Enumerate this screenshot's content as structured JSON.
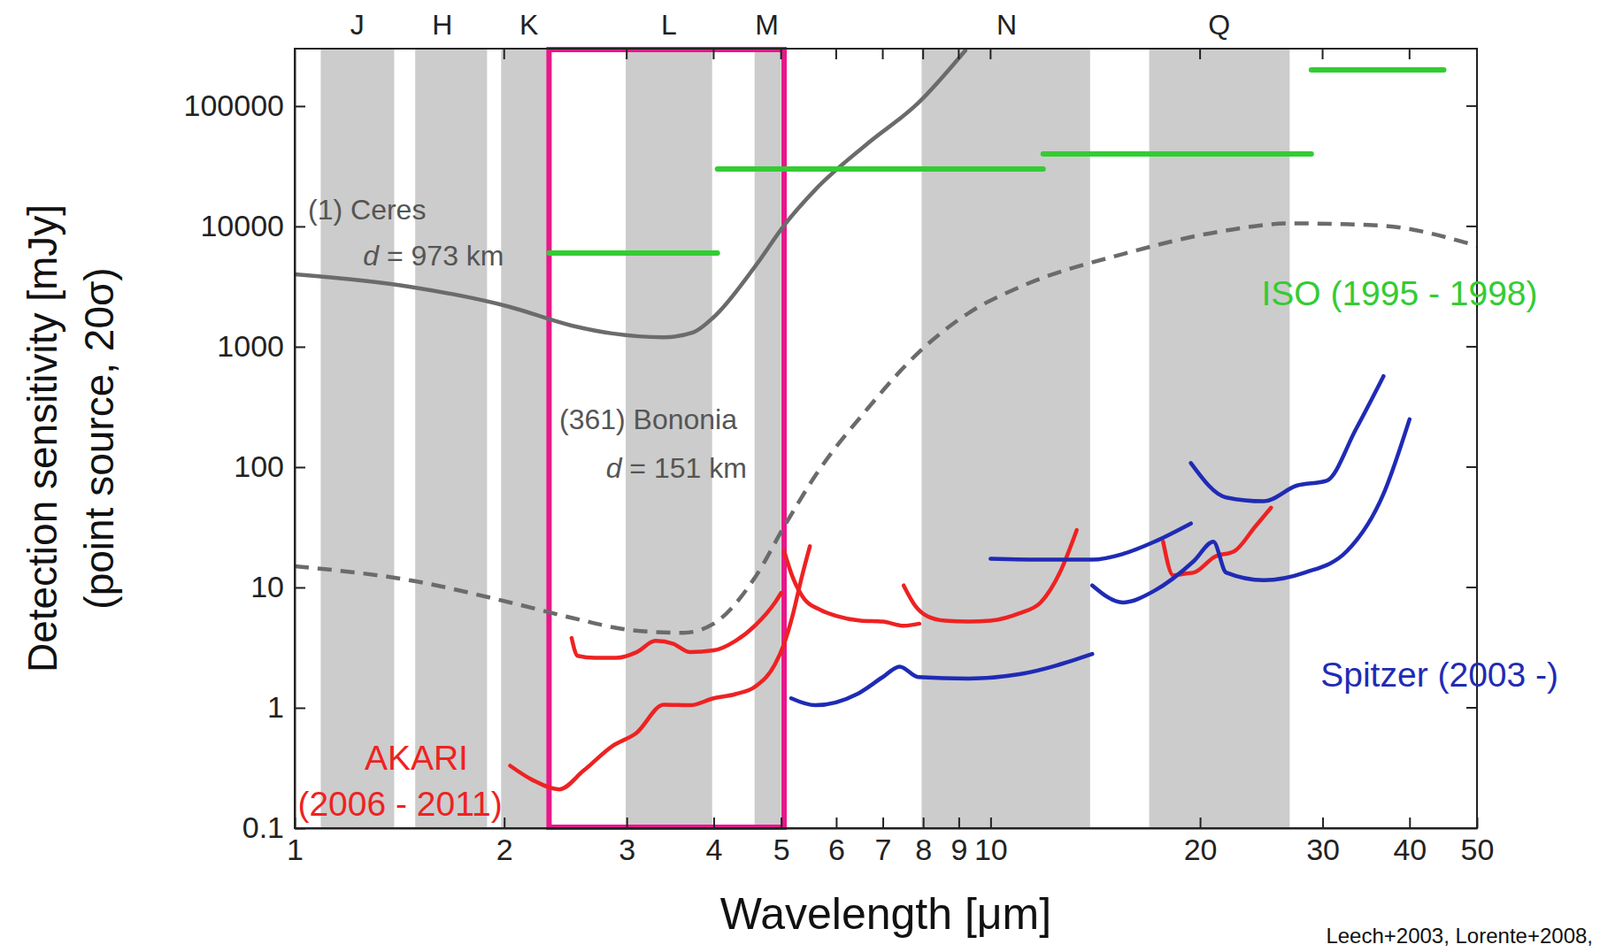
{
  "chart_data": {
    "type": "line",
    "log": true,
    "grid": false,
    "x_label": "Wavelength [μm]",
    "y_label": [
      "Detection sensitivity [mJy]",
      "(point source, 20σ)"
    ],
    "xlim": [
      1,
      50
    ],
    "ylim": [
      0.1,
      300000
    ],
    "xticks": [
      1,
      2,
      3,
      4,
      5,
      6,
      7,
      8,
      9,
      10,
      20,
      30,
      40,
      50
    ],
    "yticks": [
      0.1,
      1,
      10,
      100,
      1000,
      10000,
      100000
    ],
    "bands": [
      {
        "label": "J",
        "x": 1.23,
        "range": [
          1.09,
          1.39
        ]
      },
      {
        "label": "H",
        "x": 1.63,
        "range": [
          1.49,
          1.89
        ]
      },
      {
        "label": "K",
        "x": 2.17,
        "range": [
          1.98,
          2.32
        ]
      },
      {
        "label": "L",
        "x": 3.45,
        "range": [
          2.99,
          3.98
        ]
      },
      {
        "label": "M",
        "x": 4.77,
        "range": [
          4.58,
          5.0
        ]
      },
      {
        "label": "N",
        "x": 10.55,
        "range": [
          7.96,
          13.9
        ]
      },
      {
        "label": "Q",
        "x": 21.3,
        "range": [
          16.9,
          26.9
        ]
      }
    ],
    "highlight": {
      "x": [
        2.32,
        5.05
      ],
      "color": "#e8178a"
    },
    "series": [
      {
        "color": "#6b6b6b",
        "line_style": "solid",
        "x": [
          1,
          1.46,
          2.04,
          2.5,
          2.86,
          3.39,
          3.74,
          4.0,
          4.59,
          5.05,
          5.6,
          6.65,
          7.87,
          9.2
        ],
        "values": [
          4000,
          3160,
          2140,
          1500,
          1290,
          1200,
          1320,
          1760,
          4670,
          10200,
          20200,
          48600,
          106000,
          290000
        ]
      },
      {
        "color": "#6b6b6b",
        "line_style": "dashed",
        "x": [
          1,
          1.46,
          2.04,
          2.5,
          3.06,
          3.62,
          4.0,
          4.59,
          5.05,
          5.6,
          6.65,
          7.87,
          9.34,
          11.05,
          15.5,
          21.8,
          26.9,
          36,
          50
        ],
        "values": [
          15,
          11.5,
          7.5,
          5.6,
          4.4,
          4.2,
          5.0,
          12.2,
          32,
          85,
          304,
          890,
          1940,
          3160,
          5900,
          9250,
          10600,
          10200,
          6900
        ]
      },
      {
        "color": "#33cc33",
        "line_style": "solid",
        "x": [
          2.32,
          4.05
        ],
        "values": [
          6000,
          6000
        ]
      },
      {
        "color": "#33cc33",
        "line_style": "solid",
        "x": [
          4.05,
          11.9
        ],
        "values": [
          30000,
          30000
        ]
      },
      {
        "color": "#33cc33",
        "line_style": "solid",
        "x": [
          11.9,
          28.9
        ],
        "values": [
          40000,
          40000
        ]
      },
      {
        "color": "#33cc33",
        "line_style": "solid",
        "x": [
          28.9,
          44.8
        ],
        "values": [
          200000,
          200000
        ]
      },
      {
        "color": "#ee2222",
        "line_style": "solid",
        "x": [
          2.5,
          2.55,
          2.7,
          2.9,
          3.1,
          3.3,
          3.5,
          3.7,
          4.0,
          4.3,
          4.6,
          4.9,
          5.0
        ],
        "values": [
          3.8,
          2.7,
          2.6,
          2.6,
          2.9,
          3.6,
          3.4,
          2.9,
          3.0,
          3.6,
          4.9,
          7.5,
          9
        ]
      },
      {
        "color": "#ee2222",
        "line_style": "solid",
        "x": [
          2.04,
          2.2,
          2.4,
          2.6,
          2.86,
          3.1,
          3.39,
          3.7,
          4.0,
          4.3,
          4.59,
          4.9,
          5.05,
          5.2,
          5.35,
          5.5
        ],
        "values": [
          0.33,
          0.25,
          0.21,
          0.3,
          0.48,
          0.62,
          1.06,
          1.05,
          1.2,
          1.3,
          1.5,
          2.3,
          3.4,
          6,
          12,
          22
        ]
      },
      {
        "color": "#ee2222",
        "line_style": "solid",
        "x": [
          5.05,
          5.2,
          5.4,
          5.7,
          6.0,
          6.5,
          7.0,
          7.5,
          7.9
        ],
        "values": [
          20,
          12,
          8,
          6.5,
          5.8,
          5.3,
          5.2,
          4.8,
          5.0
        ]
      },
      {
        "color": "#ee2222",
        "line_style": "solid",
        "x": [
          7.5,
          7.8,
          8.1,
          8.6,
          9.3,
          10,
          11,
          11.8,
          12.6,
          13.3
        ],
        "values": [
          10.4,
          7,
          5.8,
          5.3,
          5.2,
          5.3,
          6.1,
          7.5,
          13.6,
          30
        ]
      },
      {
        "color": "#ee2222",
        "line_style": "solid",
        "x": [
          17.7,
          18.3,
          19,
          19.6,
          21,
          22.4,
          24,
          25.3
        ],
        "values": [
          24,
          12.6,
          13,
          13.3,
          18,
          20,
          32,
          46
        ]
      },
      {
        "color": "#1f2bb5",
        "line_style": "solid",
        "x": [
          5.17,
          5.6,
          6.43,
          7.0,
          7.4,
          7.87,
          9.3,
          11,
          14
        ],
        "values": [
          1.2,
          1.05,
          1.3,
          1.8,
          2.2,
          1.8,
          1.75,
          1.9,
          2.8
        ]
      },
      {
        "color": "#1f2bb5",
        "line_style": "solid",
        "x": [
          10,
          12,
          14,
          15.5,
          17.2,
          19.4
        ],
        "values": [
          17.3,
          17,
          17,
          19,
          24,
          34
        ]
      },
      {
        "color": "#1f2bb5",
        "line_style": "solid",
        "x": [
          14,
          15.5,
          17.2,
          19.6,
          20.9,
          21.8,
          24.7,
          28.3,
          32.5,
          36.7,
          40
        ],
        "values": [
          10.4,
          7.5,
          9.4,
          16.6,
          24,
          13.3,
          11.5,
          13.3,
          20,
          60,
          250
        ]
      },
      {
        "color": "#1f2bb5",
        "line_style": "solid",
        "x": [
          19.4,
          21.8,
          24.7,
          27.5,
          30.4,
          33.5,
          36.7
        ],
        "values": [
          108,
          56,
          52,
          70,
          77,
          207,
          570
        ]
      }
    ],
    "annotations": [
      {
        "text": "(1) Ceres",
        "x": 1.045,
        "y": 13700,
        "color": "#555555"
      },
      {
        "text": "d = 973 km",
        "x": 1.254,
        "y": 5680,
        "color": "#555555"
      },
      {
        "text": "(361) Bononia",
        "x": 2.4,
        "y": 250,
        "color": "#555555"
      },
      {
        "text": "d = 151 km",
        "x": 2.8,
        "y": 98,
        "color": "#555555"
      },
      {
        "text": "AKARI",
        "x": 1.26,
        "y": 0.385,
        "color": "#ee2222"
      },
      {
        "text": "(2006 - 2011)",
        "x": 1.01,
        "y": 0.16,
        "color": "#ee2222"
      },
      {
        "text": "ISO (1995 - 1998)",
        "x": 24.5,
        "y": 2760,
        "color": "#33cc33"
      },
      {
        "text": "Spitzer (2003 -)",
        "x": 29.8,
        "y": 1.9,
        "color": "#1f2bb5"
      }
    ],
    "source": "Leech+2003, Lorente+2008,"
  }
}
